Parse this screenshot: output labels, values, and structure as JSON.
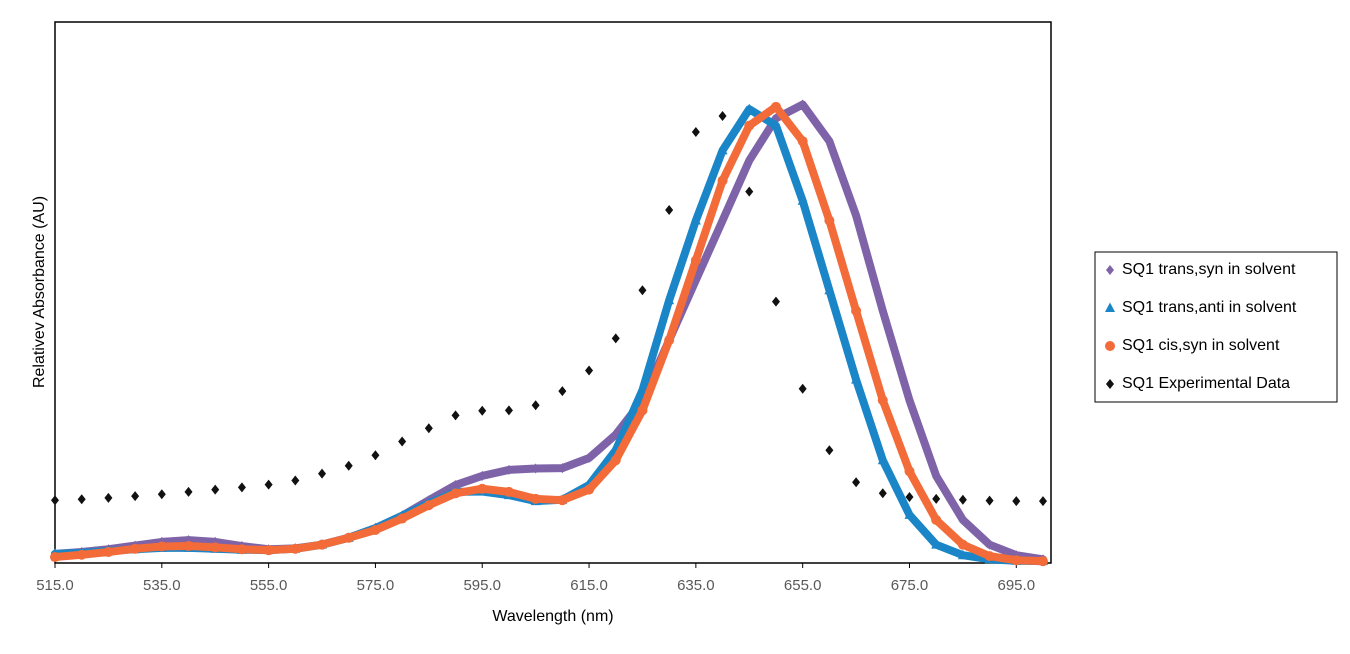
{
  "chart_data": {
    "type": "scatter",
    "x_label": "Wavelength (nm)",
    "y_label": "Relativev Absorbance (AU)",
    "xlim": [
      515,
      701.5
    ],
    "ylim": [
      0,
      1.18
    ],
    "xticks": [
      {
        "value": 515,
        "label": "515.0"
      },
      {
        "value": 535,
        "label": "535.0"
      },
      {
        "value": 555,
        "label": "555.0"
      },
      {
        "value": 575,
        "label": "575.0"
      },
      {
        "value": 595,
        "label": "595.0"
      },
      {
        "value": 615,
        "label": "615.0"
      },
      {
        "value": 635,
        "label": "635.0"
      },
      {
        "value": 655,
        "label": "655.0"
      },
      {
        "value": 675,
        "label": "675.0"
      },
      {
        "value": 695,
        "label": "695.0"
      }
    ],
    "legend": "right",
    "x": [
      515,
      520,
      525,
      530,
      535,
      540,
      545,
      550,
      555,
      560,
      565,
      570,
      575,
      580,
      585,
      590,
      595,
      600,
      605,
      610,
      615,
      620,
      625,
      630,
      635,
      640,
      645,
      650,
      655,
      660,
      665,
      670,
      675,
      680,
      685,
      690,
      695,
      700
    ],
    "series": [
      {
        "name": "SQ1 trans,syn in solvent",
        "color": "#7f63a8",
        "marker": "diamond",
        "values": [
          0.02,
          0.024,
          0.03,
          0.038,
          0.046,
          0.05,
          0.046,
          0.037,
          0.03,
          0.032,
          0.04,
          0.055,
          0.076,
          0.103,
          0.137,
          0.17,
          0.19,
          0.203,
          0.206,
          0.207,
          0.229,
          0.28,
          0.355,
          0.486,
          0.617,
          0.747,
          0.878,
          0.97,
          1.0,
          0.92,
          0.758,
          0.55,
          0.355,
          0.19,
          0.094,
          0.04,
          0.017,
          0.008
        ]
      },
      {
        "name": "SQ1 trans,anti in solvent",
        "color": "#1a86c8",
        "marker": "triangle",
        "values": [
          0.02,
          0.022,
          0.026,
          0.03,
          0.033,
          0.033,
          0.031,
          0.029,
          0.028,
          0.031,
          0.04,
          0.055,
          0.076,
          0.103,
          0.13,
          0.155,
          0.156,
          0.148,
          0.135,
          0.138,
          0.17,
          0.246,
          0.377,
          0.573,
          0.747,
          0.9,
          0.99,
          0.954,
          0.79,
          0.595,
          0.4,
          0.224,
          0.105,
          0.04,
          0.017,
          0.008,
          0.005,
          0.004
        ]
      },
      {
        "name": "SQ1 cis,syn in solvent",
        "color": "#f26b38",
        "marker": "circle",
        "values": [
          0.013,
          0.018,
          0.024,
          0.031,
          0.036,
          0.037,
          0.034,
          0.03,
          0.028,
          0.031,
          0.04,
          0.055,
          0.072,
          0.097,
          0.126,
          0.152,
          0.162,
          0.155,
          0.14,
          0.137,
          0.16,
          0.224,
          0.333,
          0.486,
          0.66,
          0.834,
          0.954,
          0.995,
          0.92,
          0.747,
          0.55,
          0.355,
          0.2,
          0.094,
          0.04,
          0.015,
          0.006,
          0.004
        ]
      },
      {
        "name": "SQ1 Experimental Data",
        "color": "#111111",
        "marker": "diamond",
        "values": [
          0.137,
          0.139,
          0.142,
          0.146,
          0.15,
          0.155,
          0.16,
          0.165,
          0.171,
          0.18,
          0.195,
          0.212,
          0.235,
          0.265,
          0.294,
          0.322,
          0.332,
          0.333,
          0.344,
          0.375,
          0.42,
          0.49,
          0.595,
          0.77,
          0.94,
          0.975,
          0.81,
          0.57,
          0.38,
          0.246,
          0.176,
          0.152,
          0.144,
          0.14,
          0.138,
          0.136,
          0.135,
          0.135
        ]
      }
    ]
  }
}
